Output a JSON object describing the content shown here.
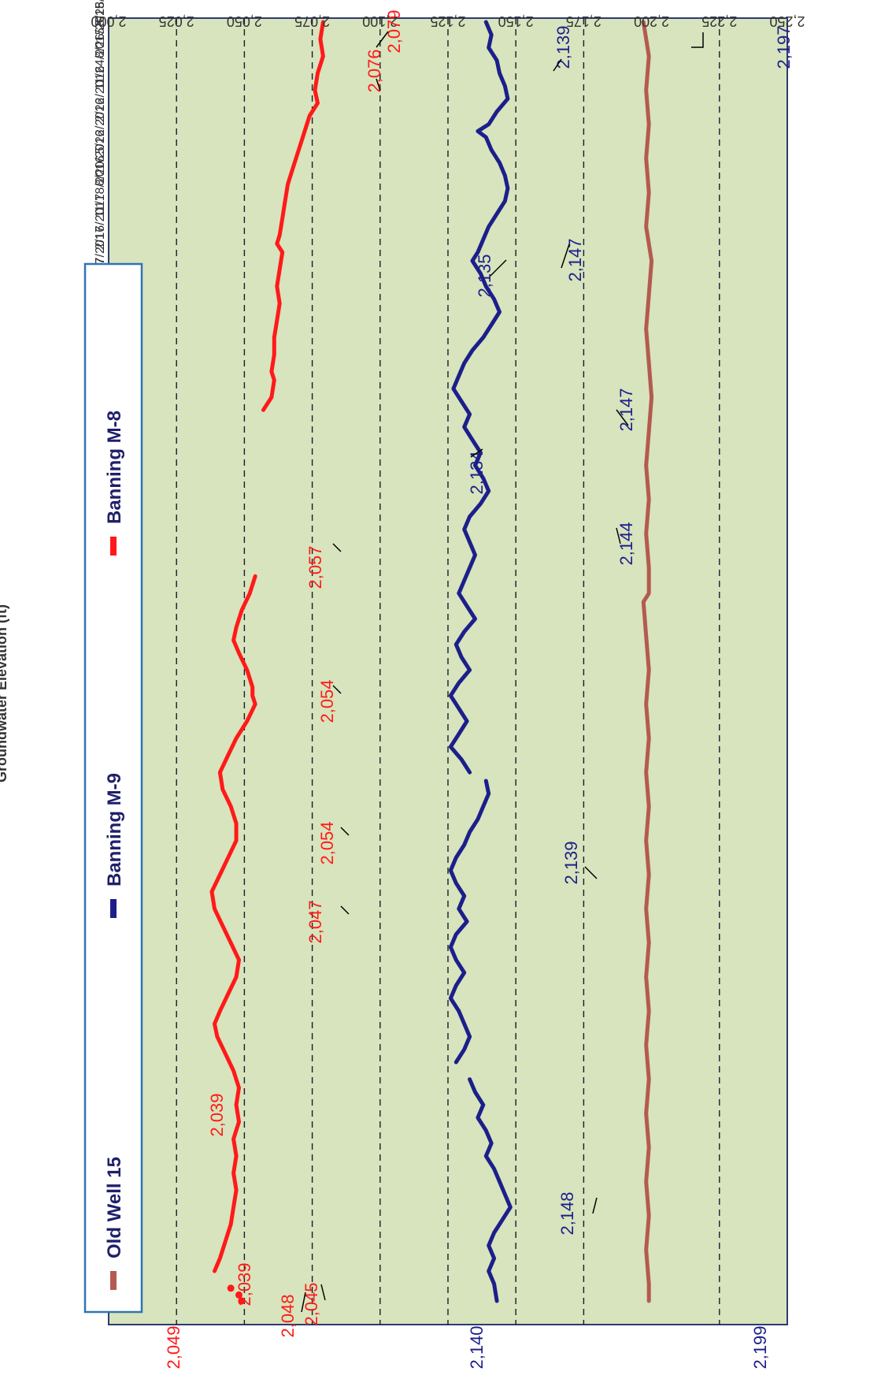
{
  "chart_data": {
    "type": "line",
    "title": "",
    "ylabel": "Groundwater Elevation (ft)",
    "xlabel": "",
    "ylim": [
      2000,
      2250
    ],
    "yticks": [
      "2,000",
      "2,025",
      "2,050",
      "2,075",
      "2,100",
      "2,125",
      "2,150",
      "2,175",
      "2,200",
      "2,225",
      "2,250"
    ],
    "grid_values": [
      2025,
      2050,
      2075,
      2100,
      2125,
      2150,
      2175,
      2225
    ],
    "xticks": [
      "5/28/2015",
      "8/26/2015",
      "11/24/2015",
      "2/22/2016",
      "5/22/2016",
      "8/20/2016",
      "11/18/2016",
      "2/16/2017",
      "5/17/2017",
      "8/15/2017",
      "11/13/2017",
      "2/11/2018",
      "5/12/2018",
      "8/10/2018",
      "11/8/2018",
      "2/6/2019",
      "5/7/2019",
      "8/5/2019",
      "11/3/2019",
      "2/1/2020",
      "5/1/2020",
      "7/30/2020",
      "10/28/2020",
      "1/26/2021",
      "4/26/2021",
      "7/25/2021",
      "10/23/2021",
      "1/21/2022",
      "4/21/2022",
      "7/20/2022",
      "10/18/2022",
      "1/16/2023",
      "4/16/2023",
      "7/15/2023",
      "10/13/2023",
      "1/11/2024",
      "4/10/2024",
      "7/9/2024",
      "10/7/2024",
      "1/5/2025",
      "4/5/2025"
    ],
    "plot_background": "#d7e4bd",
    "grid": "dashed horizontal",
    "legend_position": "top",
    "rotation": "rotated 90 degrees clockwise",
    "series": [
      {
        "name": "Old Well 15",
        "color": "#b45a50",
        "segments": [
          [
            [
              0,
              2197
            ],
            [
              4,
              2199
            ],
            [
              8,
              2198
            ],
            [
              12,
              2199
            ],
            [
              16,
              2198
            ],
            [
              20,
              2199
            ],
            [
              24,
              2198
            ],
            [
              28,
              2200
            ],
            [
              32,
              2199
            ],
            [
              36,
              2198
            ],
            [
              40,
              2199
            ],
            [
              44,
              2200
            ],
            [
              48,
              2199
            ],
            [
              52,
              2198
            ],
            [
              56,
              2199
            ],
            [
              60,
              2198
            ],
            [
              64,
              2199
            ],
            [
              67,
              2199
            ],
            [
              68,
              2197
            ],
            [
              72,
              2198
            ],
            [
              76,
              2199
            ],
            [
              80,
              2198
            ],
            [
              84,
              2199
            ],
            [
              88,
              2198
            ],
            [
              92,
              2199
            ],
            [
              96,
              2198
            ],
            [
              100,
              2199
            ],
            [
              104,
              2198
            ],
            [
              108,
              2199
            ],
            [
              112,
              2198
            ],
            [
              116,
              2199
            ],
            [
              120,
              2198
            ],
            [
              124,
              2199
            ],
            [
              128,
              2198
            ],
            [
              132,
              2199
            ],
            [
              136,
              2198
            ],
            [
              140,
              2199
            ],
            [
              144,
              2198
            ],
            [
              148,
              2199
            ],
            [
              150,
              2199
            ]
          ]
        ]
      },
      {
        "name": "Banning M-9",
        "color": "#1c1f8a",
        "segments": [
          [
            [
              0,
              2139
            ],
            [
              1.5,
              2141
            ],
            [
              3,
              2140
            ],
            [
              4.5,
              2143
            ],
            [
              6,
              2144
            ],
            [
              7.5,
              2146
            ],
            [
              9,
              2147
            ],
            [
              10.5,
              2143
            ],
            [
              12,
              2140
            ],
            [
              12.8,
              2136
            ],
            [
              13.5,
              2139
            ],
            [
              15,
              2141
            ],
            [
              16.5,
              2144
            ],
            [
              18,
              2146
            ],
            [
              19.5,
              2147
            ],
            [
              21,
              2146
            ],
            [
              22.5,
              2143
            ],
            [
              24,
              2140
            ],
            [
              25.5,
              2138
            ],
            [
              27,
              2136
            ],
            [
              28,
              2134
            ],
            [
              29.5,
              2137
            ],
            [
              31,
              2139
            ],
            [
              32.5,
              2142
            ],
            [
              34,
              2144
            ],
            [
              35.5,
              2141
            ],
            [
              37,
              2138
            ],
            [
              38.5,
              2134
            ],
            [
              40,
              2131
            ],
            [
              41.5,
              2129
            ],
            [
              43,
              2127
            ],
            [
              44.5,
              2130
            ],
            [
              46,
              2133
            ],
            [
              47.5,
              2131
            ],
            [
              49,
              2134
            ],
            [
              50.5,
              2137
            ],
            [
              52,
              2135
            ],
            [
              53.5,
              2138
            ],
            [
              55,
              2140
            ],
            [
              56.5,
              2137
            ],
            [
              58,
              2133
            ],
            [
              59.5,
              2131
            ],
            [
              61,
              2133
            ],
            [
              62.5,
              2135
            ],
            [
              64,
              2133
            ],
            [
              65.5,
              2131
            ],
            [
              67,
              2129
            ],
            [
              68.5,
              2132
            ],
            [
              70,
              2135
            ],
            [
              71.5,
              2131
            ],
            [
              73,
              2128
            ],
            [
              74.5,
              2130
            ],
            [
              76,
              2133
            ],
            [
              77.5,
              2129
            ],
            [
              79,
              2126
            ],
            [
              80.5,
              2129
            ],
            [
              82,
              2132
            ],
            [
              83.5,
              2129
            ],
            [
              85,
              2126
            ],
            [
              86.5,
              2130
            ],
            [
              88,
              2133
            ]
          ],
          [
            [
              89,
              2139
            ],
            [
              90.5,
              2140
            ],
            [
              92,
              2138
            ],
            [
              93.5,
              2136
            ],
            [
              95,
              2133
            ],
            [
              96.5,
              2131
            ],
            [
              98,
              2128
            ],
            [
              99.5,
              2126
            ],
            [
              101,
              2128
            ],
            [
              102.5,
              2131
            ],
            [
              104,
              2129
            ],
            [
              105.5,
              2132
            ],
            [
              107,
              2128
            ],
            [
              108.5,
              2126
            ],
            [
              110,
              2128
            ],
            [
              111.5,
              2131
            ],
            [
              113,
              2128
            ],
            [
              114.5,
              2126
            ],
            [
              116,
              2129
            ],
            [
              117.5,
              2131
            ],
            [
              119,
              2133
            ],
            [
              120.5,
              2131
            ],
            [
              122,
              2128
            ]
          ],
          [
            [
              124,
              2133
            ],
            [
              125.5,
              2135
            ],
            [
              127,
              2138
            ],
            [
              128.5,
              2136
            ],
            [
              130,
              2139
            ],
            [
              131.5,
              2141
            ],
            [
              133,
              2139
            ],
            [
              134.5,
              2142
            ],
            [
              136,
              2144
            ],
            [
              137.5,
              2146
            ],
            [
              139,
              2148
            ],
            [
              140.5,
              2145
            ],
            [
              142,
              2142
            ],
            [
              143.5,
              2140
            ],
            [
              145,
              2142
            ],
            [
              146.5,
              2140
            ],
            [
              148,
              2142
            ],
            [
              150,
              2143
            ]
          ]
        ]
      },
      {
        "name": "Banning M-8",
        "color": "#ff1a1a",
        "segments": [
          [
            [
              0,
              2079
            ],
            [
              2,
              2078
            ],
            [
              4,
              2079
            ],
            [
              6,
              2077
            ],
            [
              8,
              2076
            ],
            [
              9.5,
              2077
            ],
            [
              11,
              2074
            ],
            [
              13,
              2072
            ],
            [
              15,
              2070
            ],
            [
              17,
              2068
            ],
            [
              19,
              2066
            ],
            [
              21,
              2065
            ],
            [
              23,
              2064
            ],
            [
              25,
              2063
            ],
            [
              26,
              2062
            ],
            [
              27,
              2064
            ],
            [
              29,
              2063
            ],
            [
              31,
              2062
            ],
            [
              33,
              2063
            ],
            [
              35,
              2062
            ],
            [
              37,
              2061
            ],
            [
              39,
              2061
            ],
            [
              41,
              2060
            ],
            [
              42,
              2061
            ],
            [
              44,
              2060
            ],
            [
              45.5,
              2057
            ]
          ],
          [
            [
              65,
              2054
            ],
            [
              67,
              2052
            ],
            [
              69,
              2049
            ],
            [
              71,
              2047
            ],
            [
              72.5,
              2046
            ],
            [
              74,
              2048
            ],
            [
              76,
              2051
            ],
            [
              78,
              2053
            ],
            [
              79,
              2053
            ],
            [
              80,
              2054
            ],
            [
              82,
              2051
            ],
            [
              84,
              2047
            ],
            [
              86,
              2044
            ],
            [
              88,
              2041
            ],
            [
              90,
              2042
            ],
            [
              92,
              2045
            ],
            [
              94,
              2047
            ],
            [
              96,
              2047
            ],
            [
              98,
              2044
            ],
            [
              100,
              2041
            ],
            [
              102,
              2038
            ],
            [
              104,
              2039
            ],
            [
              106,
              2042
            ],
            [
              108,
              2045
            ],
            [
              110,
              2048
            ],
            [
              112,
              2047
            ],
            [
              114,
              2044
            ],
            [
              116,
              2041
            ],
            [
              117.5,
              2039
            ],
            [
              119,
              2040
            ],
            [
              121,
              2043
            ],
            [
              123,
              2046
            ],
            [
              125,
              2048
            ],
            [
              127,
              2047
            ],
            [
              129,
              2048
            ],
            [
              131,
              2046
            ],
            [
              133,
              2047
            ],
            [
              135,
              2046
            ],
            [
              137,
              2047
            ],
            [
              139,
              2046
            ],
            [
              141,
              2045
            ],
            [
              143,
              2043
            ],
            [
              145,
              2041
            ],
            [
              146.5,
              2039
            ]
          ]
        ],
        "points": [
          [
            148.5,
            2045
          ],
          [
            149.3,
            2048
          ],
          [
            150,
            2049
          ]
        ]
      }
    ],
    "annotations": [
      {
        "text": "2,199",
        "color": "#1c1f8a"
      },
      {
        "text": "2,140",
        "color": "#1c1f8a"
      },
      {
        "text": "2,049",
        "color": "#ff1a1a"
      },
      {
        "text": "2,197",
        "color": "#1c1f8a"
      },
      {
        "text": "2,139",
        "color": "#1c1f8a"
      },
      {
        "text": "2,147",
        "color": "#1c1f8a"
      },
      {
        "text": "2,135",
        "color": "#1c1f8a"
      },
      {
        "text": "2,147",
        "color": "#1c1f8a"
      },
      {
        "text": "2,134",
        "color": "#1c1f8a"
      },
      {
        "text": "2,144",
        "color": "#1c1f8a"
      },
      {
        "text": "2,139",
        "color": "#1c1f8a"
      },
      {
        "text": "2,148",
        "color": "#1c1f8a"
      },
      {
        "text": "2,079",
        "color": "#ff1a1a"
      },
      {
        "text": "2,076",
        "color": "#ff1a1a"
      },
      {
        "text": "2,057",
        "color": "#ff1a1a"
      },
      {
        "text": "2,054",
        "color": "#ff1a1a"
      },
      {
        "text": "2,054",
        "color": "#ff1a1a"
      },
      {
        "text": "2,047",
        "color": "#ff1a1a"
      },
      {
        "text": "2,039",
        "color": "#ff1a1a"
      },
      {
        "text": "2,039",
        "color": "#ff1a1a"
      },
      {
        "text": "2,045",
        "color": "#ff1a1a"
      },
      {
        "text": "2,048",
        "color": "#ff1a1a"
      }
    ]
  }
}
